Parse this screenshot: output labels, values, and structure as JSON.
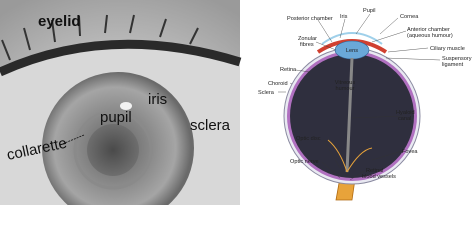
{
  "photo": {
    "labels": [
      "eyelid",
      "pupil",
      "iris",
      "sclera",
      "collarette"
    ]
  },
  "diagram": {
    "labels": [
      {
        "lines": [
          "Posterior chamber"
        ]
      },
      {
        "lines": [
          "Iris"
        ]
      },
      {
        "lines": [
          "Pupil"
        ]
      },
      {
        "lines": [
          "Cornea"
        ]
      },
      {
        "lines": [
          "Anterior chamber",
          "(aqueous humour)"
        ]
      },
      {
        "lines": [
          "Zonular",
          "fibres"
        ]
      },
      {
        "lines": [
          "Lens"
        ]
      },
      {
        "lines": [
          "Ciliary muscle"
        ]
      },
      {
        "lines": [
          "Suspensory",
          "ligament"
        ]
      },
      {
        "lines": [
          "Retina"
        ]
      },
      {
        "lines": [
          "Choroid"
        ]
      },
      {
        "lines": [
          "Sclera"
        ]
      },
      {
        "lines": [
          "Vitreous",
          "humour"
        ]
      },
      {
        "lines": [
          "Hyaloid",
          "canal"
        ]
      },
      {
        "lines": [
          "Optic disc"
        ]
      },
      {
        "lines": [
          "Fovea"
        ]
      },
      {
        "lines": [
          "Optic nerve"
        ]
      },
      {
        "lines": [
          "Retinal",
          "blood vessels"
        ]
      }
    ]
  }
}
